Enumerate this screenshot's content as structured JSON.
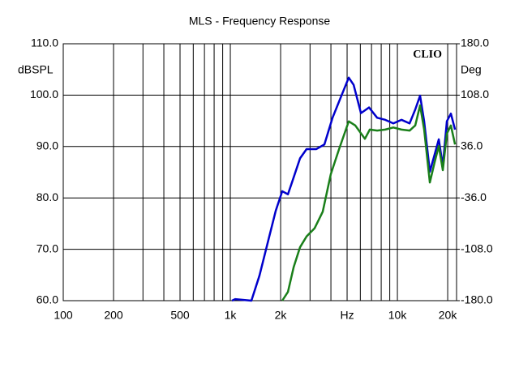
{
  "chart_data": {
    "type": "line",
    "title": "MLS - Frequency Response",
    "y_label": "dBSPL",
    "y2_label": "Deg",
    "annotation": "CLIO",
    "log_x": true,
    "grid": true,
    "xlim": [
      100,
      22600
    ],
    "xticks": [
      100,
      200,
      500,
      {
        "value": 1000,
        "label": "1k"
      },
      {
        "value": 2000,
        "label": "2k"
      },
      {
        "value": 5000,
        "label": "Hz"
      },
      {
        "value": 10000,
        "label": "10k"
      },
      {
        "value": 20000,
        "label": "20k"
      }
    ],
    "ylim": [
      60,
      110
    ],
    "yticks": [
      {
        "value": 60,
        "label": "60.0"
      },
      {
        "value": 70,
        "label": "70.0"
      },
      {
        "value": 80,
        "label": "80.0"
      },
      {
        "value": 90,
        "label": "90.0"
      },
      {
        "value": 100,
        "label": "100.0"
      },
      {
        "value": 110,
        "label": "110.0"
      }
    ],
    "y2lim": [
      -180,
      180
    ],
    "y2ticks": [
      {
        "value": -180,
        "label": "-180.0"
      },
      {
        "value": -108,
        "label": "-108.0"
      },
      {
        "value": -36,
        "label": "-36.0"
      },
      {
        "value": 36,
        "label": "36.0"
      },
      {
        "value": 108,
        "label": "108.0"
      },
      {
        "value": 180,
        "label": "180.0"
      }
    ],
    "series": [
      {
        "color": "#0000cc",
        "x": [
          1023,
          1069,
          1337,
          1495,
          1672,
          1870,
          2045,
          2212,
          2338,
          2614,
          2860,
          3272,
          3657,
          4091,
          4572,
          5114,
          5470,
          6051,
          6764,
          7566,
          8456,
          9455,
          10572,
          11830,
          12790,
          13670,
          14460,
          15640,
          16720,
          17690,
          18700,
          19770,
          20900,
          22130
        ],
        "values": [
          60,
          60.3,
          60,
          64.9,
          71.2,
          77.5,
          81.3,
          80.7,
          83.0,
          87.7,
          89.5,
          89.5,
          90.4,
          95.6,
          99.5,
          103.4,
          102.0,
          96.5,
          97.6,
          95.6,
          95.2,
          94.5,
          95.2,
          94.5,
          97.2,
          99.9,
          94.9,
          85.1,
          88.5,
          91.4,
          86.2,
          94.9,
          96.4,
          93.3
        ]
      },
      {
        "color": "#1a7f1a",
        "x": [
          2045,
          2212,
          2393,
          2614,
          2860,
          3196,
          3572,
          3993,
          4466,
          5114,
          5596,
          6390,
          6837,
          7566,
          8456,
          9455,
          10572,
          11830,
          12790,
          13670,
          14460,
          15640,
          16720,
          17690,
          18700,
          19770,
          20900,
          22130
        ],
        "values": [
          60,
          61.7,
          66.5,
          70.4,
          72.5,
          74.1,
          77.3,
          84.6,
          89.4,
          94.9,
          94.1,
          91.5,
          93.3,
          93.1,
          93.3,
          93.7,
          93.3,
          93.1,
          94.1,
          98.0,
          93.3,
          83.0,
          87.0,
          90.1,
          85.4,
          92.5,
          94.1,
          90.4
        ]
      }
    ]
  }
}
